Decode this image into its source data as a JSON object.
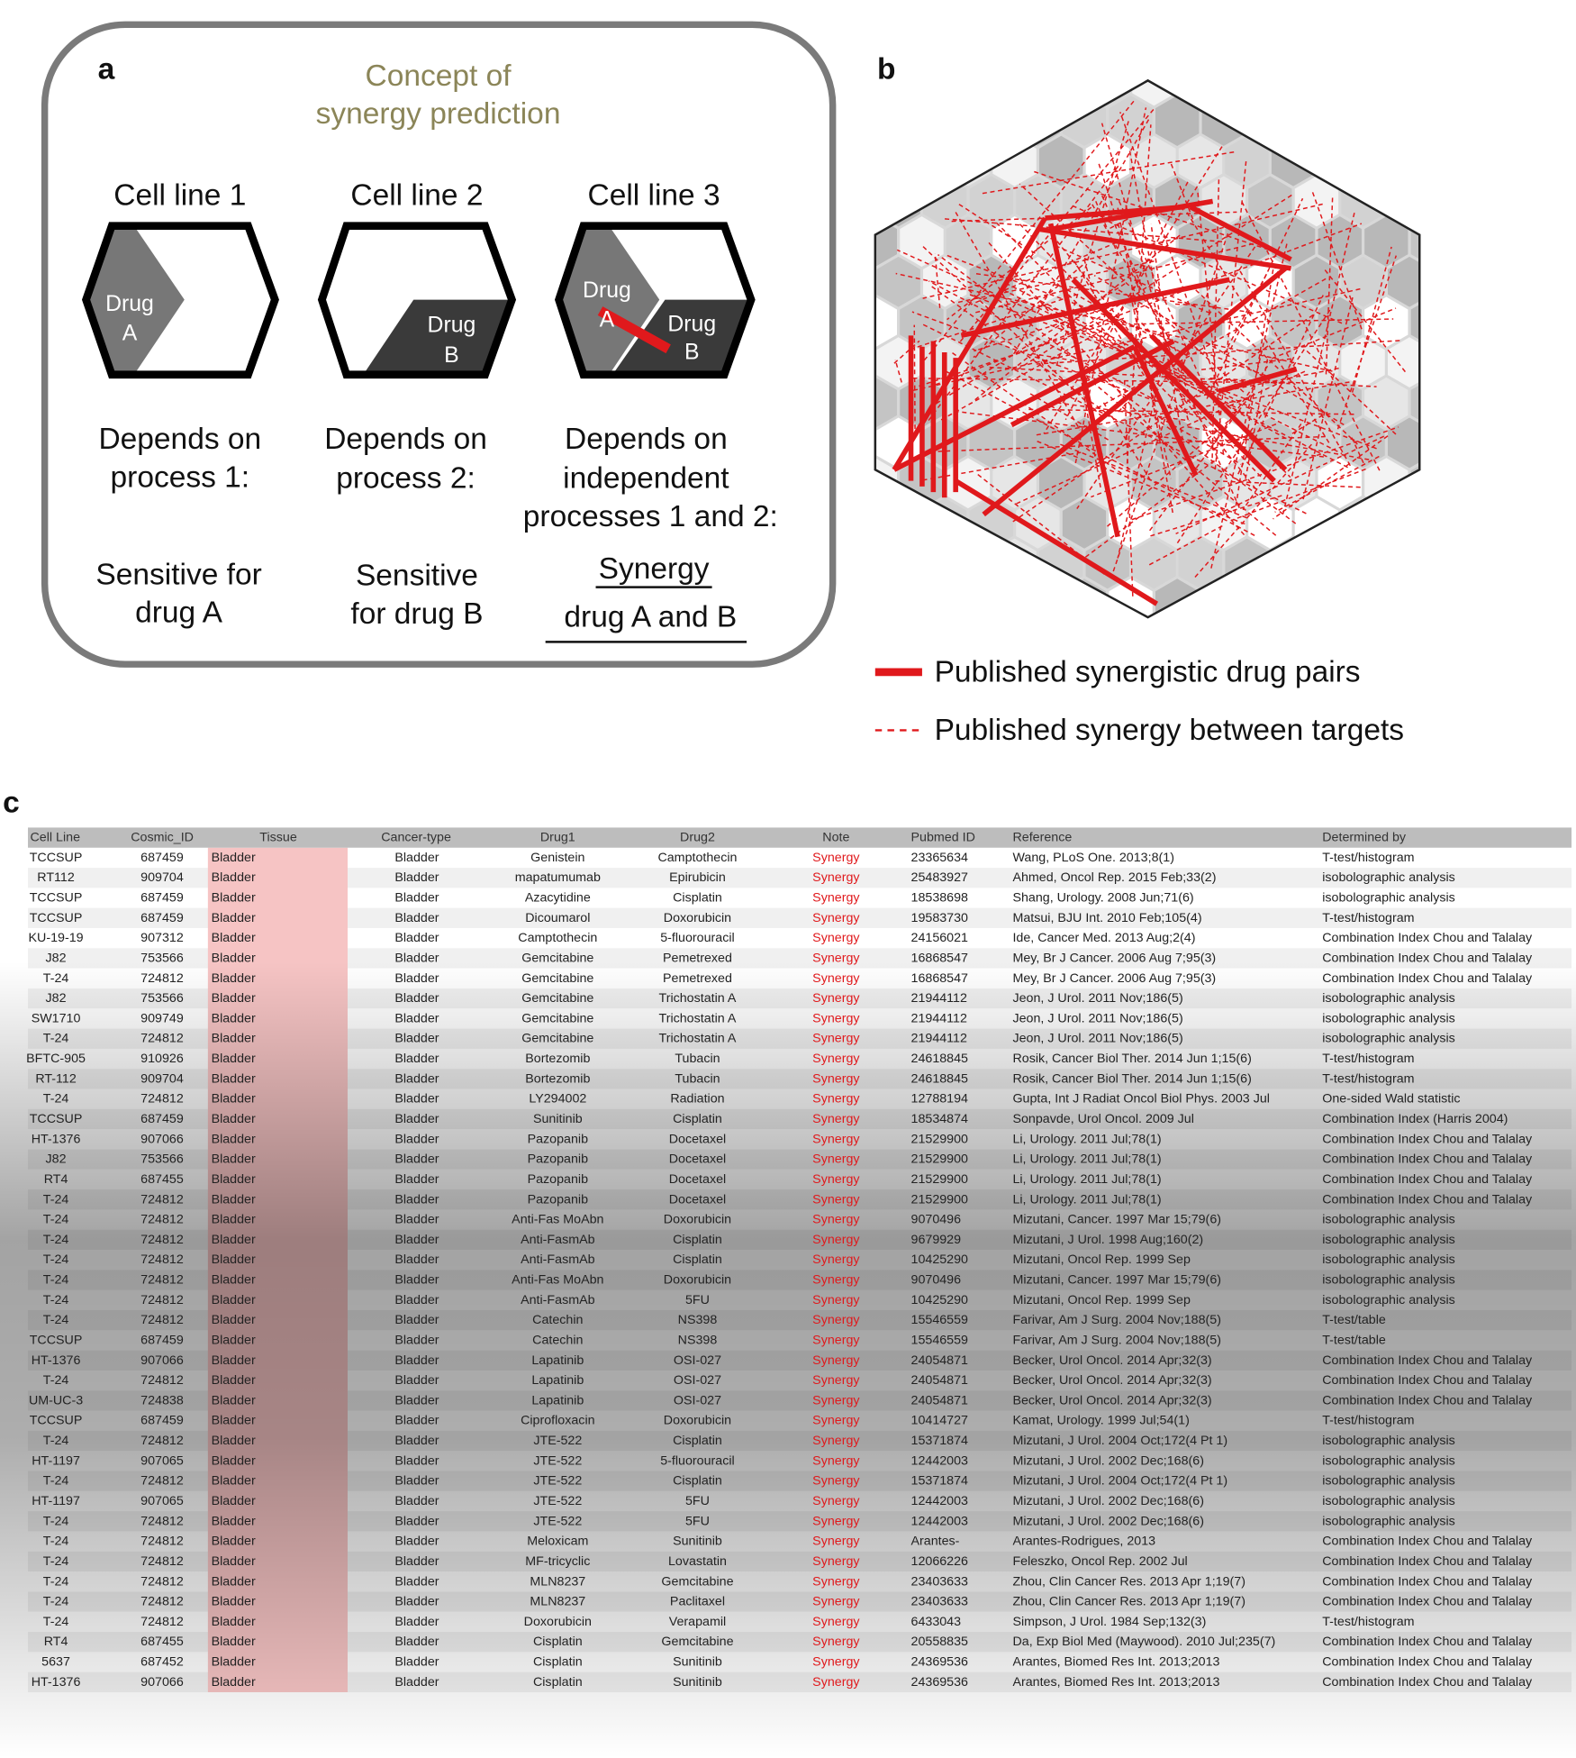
{
  "panel_a": {
    "label": "a",
    "title": [
      "Concept of",
      "synergy prediction"
    ],
    "columns": [
      {
        "header": "Cell line 1",
        "drugs": [
          "Drug",
          "A"
        ],
        "depends": [
          "Depends on",
          "process 1:"
        ],
        "outcome": [
          "Sensitive for",
          "drug A"
        ]
      },
      {
        "header": "Cell line 2",
        "drugs": [
          "Drug",
          "B"
        ],
        "depends": [
          "Depends on",
          "process 2:"
        ],
        "outcome": [
          "Sensitive",
          "for drug B"
        ]
      },
      {
        "header": "Cell line 3",
        "drugs": [
          "Drug",
          "A",
          "Drug",
          "B"
        ],
        "depends": [
          "Depends on",
          "independent",
          "processes 1 and 2:"
        ],
        "outcome": [
          "Synergy",
          "drug A and B"
        ]
      }
    ]
  },
  "panel_b": {
    "label": "b",
    "legend": [
      "Published synergistic drug pairs",
      "Published synergy between targets"
    ]
  },
  "panel_c": {
    "label": "c",
    "table": {
      "header": [
        "Cell Line",
        "Cosmic_ID",
        "Tissue",
        "Cancer-type",
        "Drug1",
        "Drug2",
        "Note",
        "Pubmed ID",
        "Reference",
        "Determined by"
      ],
      "rows": [
        [
          "TCCSUP",
          "687459",
          "Bladder",
          "Bladder",
          "Genistein",
          "Camptothecin",
          "Synergy",
          "23365634",
          "Wang, PLoS One. 2013;8(1)",
          "T-test/histogram"
        ],
        [
          "RT112",
          "909704",
          "Bladder",
          "Bladder",
          "mapatumumab",
          "Epirubicin",
          "Synergy",
          "25483927",
          "Ahmed, Oncol Rep. 2015 Feb;33(2)",
          "isobolographic analysis"
        ],
        [
          "TCCSUP",
          "687459",
          "Bladder",
          "Bladder",
          "Azacytidine",
          "Cisplatin",
          "Synergy",
          "18538698",
          "Shang, Urology. 2008 Jun;71(6)",
          "isobolographic analysis"
        ],
        [
          "TCCSUP",
          "687459",
          "Bladder",
          "Bladder",
          "Dicoumarol",
          "Doxorubicin",
          "Synergy",
          "19583730",
          "Matsui, BJU Int. 2010 Feb;105(4)",
          "T-test/histogram"
        ],
        [
          "KU-19-19",
          "907312",
          "Bladder",
          "Bladder",
          "Camptothecin",
          "5-fluorouracil",
          "Synergy",
          "24156021",
          "Ide, Cancer Med. 2013 Aug;2(4)",
          "Combination Index Chou and Talalay"
        ],
        [
          "J82",
          "753566",
          "Bladder",
          "Bladder",
          "Gemcitabine",
          "Pemetrexed",
          "Synergy",
          "16868547",
          "Mey, Br J Cancer. 2006 Aug 7;95(3)",
          "Combination Index Chou and Talalay"
        ],
        [
          "T-24",
          "724812",
          "Bladder",
          "Bladder",
          "Gemcitabine",
          "Pemetrexed",
          "Synergy",
          "16868547",
          "Mey, Br J Cancer. 2006 Aug 7;95(3)",
          "Combination Index Chou and Talalay"
        ],
        [
          "J82",
          "753566",
          "Bladder",
          "Bladder",
          "Gemcitabine",
          "Trichostatin A",
          "Synergy",
          "21944112",
          "Jeon, J Urol. 2011 Nov;186(5)",
          "isobolographic analysis"
        ],
        [
          "SW1710",
          "909749",
          "Bladder",
          "Bladder",
          "Gemcitabine",
          "Trichostatin A",
          "Synergy",
          "21944112",
          "Jeon, J Urol. 2011 Nov;186(5)",
          "isobolographic analysis"
        ],
        [
          "T-24",
          "724812",
          "Bladder",
          "Bladder",
          "Gemcitabine",
          "Trichostatin A",
          "Synergy",
          "21944112",
          "Jeon, J Urol. 2011 Nov;186(5)",
          "isobolographic analysis"
        ],
        [
          "BFTC-905",
          "910926",
          "Bladder",
          "Bladder",
          "Bortezomib",
          "Tubacin",
          "Synergy",
          "24618845",
          "Rosik, Cancer Biol Ther. 2014 Jun 1;15(6)",
          "T-test/histogram"
        ],
        [
          "RT-112",
          "909704",
          "Bladder",
          "Bladder",
          "Bortezomib",
          "Tubacin",
          "Synergy",
          "24618845",
          "Rosik, Cancer Biol Ther. 2014 Jun 1;15(6)",
          "T-test/histogram"
        ],
        [
          "T-24",
          "724812",
          "Bladder",
          "Bladder",
          "LY294002",
          "Radiation",
          "Synergy",
          "12788194",
          "Gupta, Int J Radiat Oncol Biol Phys. 2003 Jul",
          "One-sided Wald statistic"
        ],
        [
          "TCCSUP",
          "687459",
          "Bladder",
          "Bladder",
          "Sunitinib",
          "Cisplatin",
          "Synergy",
          "18534874",
          "Sonpavde, Urol Oncol. 2009 Jul",
          "Combination Index (Harris 2004)"
        ],
        [
          "HT-1376",
          "907066",
          "Bladder",
          "Bladder",
          "Pazopanib",
          "Docetaxel",
          "Synergy",
          "21529900",
          "Li, Urology. 2011 Jul;78(1)",
          "Combination Index Chou and Talalay"
        ],
        [
          "J82",
          "753566",
          "Bladder",
          "Bladder",
          "Pazopanib",
          "Docetaxel",
          "Synergy",
          "21529900",
          "Li, Urology. 2011 Jul;78(1)",
          "Combination Index Chou and Talalay"
        ],
        [
          "RT4",
          "687455",
          "Bladder",
          "Bladder",
          "Pazopanib",
          "Docetaxel",
          "Synergy",
          "21529900",
          "Li, Urology. 2011 Jul;78(1)",
          "Combination Index Chou and Talalay"
        ],
        [
          "T-24",
          "724812",
          "Bladder",
          "Bladder",
          "Pazopanib",
          "Docetaxel",
          "Synergy",
          "21529900",
          "Li, Urology. 2011 Jul;78(1)",
          "Combination Index Chou and Talalay"
        ],
        [
          "T-24",
          "724812",
          "Bladder",
          "Bladder",
          "Anti-Fas MoAbn",
          "Doxorubicin",
          "Synergy",
          "9070496",
          "Mizutani, Cancer. 1997 Mar 15;79(6)",
          "isobolographic analysis"
        ],
        [
          "T-24",
          "724812",
          "Bladder",
          "Bladder",
          "Anti-FasmAb",
          "Cisplatin",
          "Synergy",
          "9679929",
          "Mizutani, J Urol. 1998 Aug;160(2)",
          "isobolographic analysis"
        ],
        [
          "T-24",
          "724812",
          "Bladder",
          "Bladder",
          "Anti-FasmAb",
          "Cisplatin",
          "Synergy",
          "10425290",
          "Mizutani, Oncol Rep. 1999 Sep",
          "isobolographic analysis"
        ],
        [
          "T-24",
          "724812",
          "Bladder",
          "Bladder",
          "Anti-Fas MoAbn",
          "Doxorubicin",
          "Synergy",
          "9070496",
          "Mizutani, Cancer. 1997 Mar 15;79(6)",
          "isobolographic analysis"
        ],
        [
          "T-24",
          "724812",
          "Bladder",
          "Bladder",
          "Anti-FasmAb",
          "5FU",
          "Synergy",
          "10425290",
          "Mizutani, Oncol Rep. 1999 Sep",
          "isobolographic analysis"
        ],
        [
          "T-24",
          "724812",
          "Bladder",
          "Bladder",
          "Catechin",
          "NS398",
          "Synergy",
          "15546559",
          "Farivar, Am J Surg. 2004 Nov;188(5)",
          "T-test/table"
        ],
        [
          "TCCSUP",
          "687459",
          "Bladder",
          "Bladder",
          "Catechin",
          "NS398",
          "Synergy",
          "15546559",
          "Farivar, Am J Surg. 2004 Nov;188(5)",
          "T-test/table"
        ],
        [
          "HT-1376",
          "907066",
          "Bladder",
          "Bladder",
          "Lapatinib",
          "OSI-027",
          "Synergy",
          "24054871",
          "Becker, Urol Oncol. 2014 Apr;32(3)",
          "Combination Index Chou and Talalay"
        ],
        [
          "T-24",
          "724812",
          "Bladder",
          "Bladder",
          "Lapatinib",
          "OSI-027",
          "Synergy",
          "24054871",
          "Becker, Urol Oncol. 2014 Apr;32(3)",
          "Combination Index Chou and Talalay"
        ],
        [
          "UM-UC-3",
          "724838",
          "Bladder",
          "Bladder",
          "Lapatinib",
          "OSI-027",
          "Synergy",
          "24054871",
          "Becker, Urol Oncol. 2014 Apr;32(3)",
          "Combination Index Chou and Talalay"
        ],
        [
          "TCCSUP",
          "687459",
          "Bladder",
          "Bladder",
          "Ciprofloxacin",
          "Doxorubicin",
          "Synergy",
          "10414727",
          "Kamat, Urology. 1999 Jul;54(1)",
          "T-test/histogram"
        ],
        [
          "T-24",
          "724812",
          "Bladder",
          "Bladder",
          "JTE-522",
          "Cisplatin",
          "Synergy",
          "15371874",
          "Mizutani, J Urol. 2004 Oct;172(4 Pt 1)",
          "isobolographic analysis"
        ],
        [
          "HT-1197",
          "907065",
          "Bladder",
          "Bladder",
          "JTE-522",
          "5-fluorouracil",
          "Synergy",
          "12442003",
          "Mizutani, J Urol. 2002 Dec;168(6)",
          "isobolographic analysis"
        ],
        [
          "T-24",
          "724812",
          "Bladder",
          "Bladder",
          "JTE-522",
          "Cisplatin",
          "Synergy",
          "15371874",
          "Mizutani, J Urol. 2004 Oct;172(4 Pt 1)",
          "isobolographic analysis"
        ],
        [
          "HT-1197",
          "907065",
          "Bladder",
          "Bladder",
          "JTE-522",
          "5FU",
          "Synergy",
          "12442003",
          "Mizutani, J Urol. 2002 Dec;168(6)",
          "isobolographic analysis"
        ],
        [
          "T-24",
          "724812",
          "Bladder",
          "Bladder",
          "JTE-522",
          "5FU",
          "Synergy",
          "12442003",
          "Mizutani, J Urol. 2002 Dec;168(6)",
          "isobolographic analysis"
        ],
        [
          "T-24",
          "724812",
          "Bladder",
          "Bladder",
          "Meloxicam",
          "Sunitinib",
          "Synergy",
          "Arantes-",
          "Arantes-Rodrigues, 2013",
          "Combination Index Chou and Talalay"
        ],
        [
          "T-24",
          "724812",
          "Bladder",
          "Bladder",
          "MF-tricyclic",
          "Lovastatin",
          "Synergy",
          "12066226",
          "Feleszko, Oncol Rep. 2002 Jul",
          "Combination Index Chou and Talalay"
        ],
        [
          "T-24",
          "724812",
          "Bladder",
          "Bladder",
          "MLN8237",
          "Gemcitabine",
          "Synergy",
          "23403633",
          "Zhou, Clin Cancer Res. 2013 Apr 1;19(7)",
          "Combination Index Chou and Talalay"
        ],
        [
          "T-24",
          "724812",
          "Bladder",
          "Bladder",
          "MLN8237",
          "Paclitaxel",
          "Synergy",
          "23403633",
          "Zhou, Clin Cancer Res. 2013 Apr 1;19(7)",
          "Combination Index Chou and Talalay"
        ],
        [
          "T-24",
          "724812",
          "Bladder",
          "Bladder",
          "Doxorubicin",
          "Verapamil",
          "Synergy",
          "6433043",
          "Simpson, J Urol. 1984 Sep;132(3)",
          "T-test/histogram"
        ],
        [
          "RT4",
          "687455",
          "Bladder",
          "Bladder",
          "Cisplatin",
          "Gemcitabine",
          "Synergy",
          "20558835",
          "Da, Exp Biol Med (Maywood). 2010 Jul;235(7)",
          "Combination Index Chou and Talalay"
        ],
        [
          "5637",
          "687452",
          "Bladder",
          "Bladder",
          "Cisplatin",
          "Sunitinib",
          "Synergy",
          "24369536",
          "Arantes, Biomed Res Int. 2013;2013",
          "Combination Index Chou and Talalay"
        ],
        [
          "HT-1376",
          "907066",
          "Bladder",
          "Bladder",
          "Cisplatin",
          "Sunitinib",
          "Synergy",
          "24369536",
          "Arantes, Biomed Res Int. 2013;2013",
          "Combination Index Chou and Talalay"
        ]
      ]
    }
  }
}
